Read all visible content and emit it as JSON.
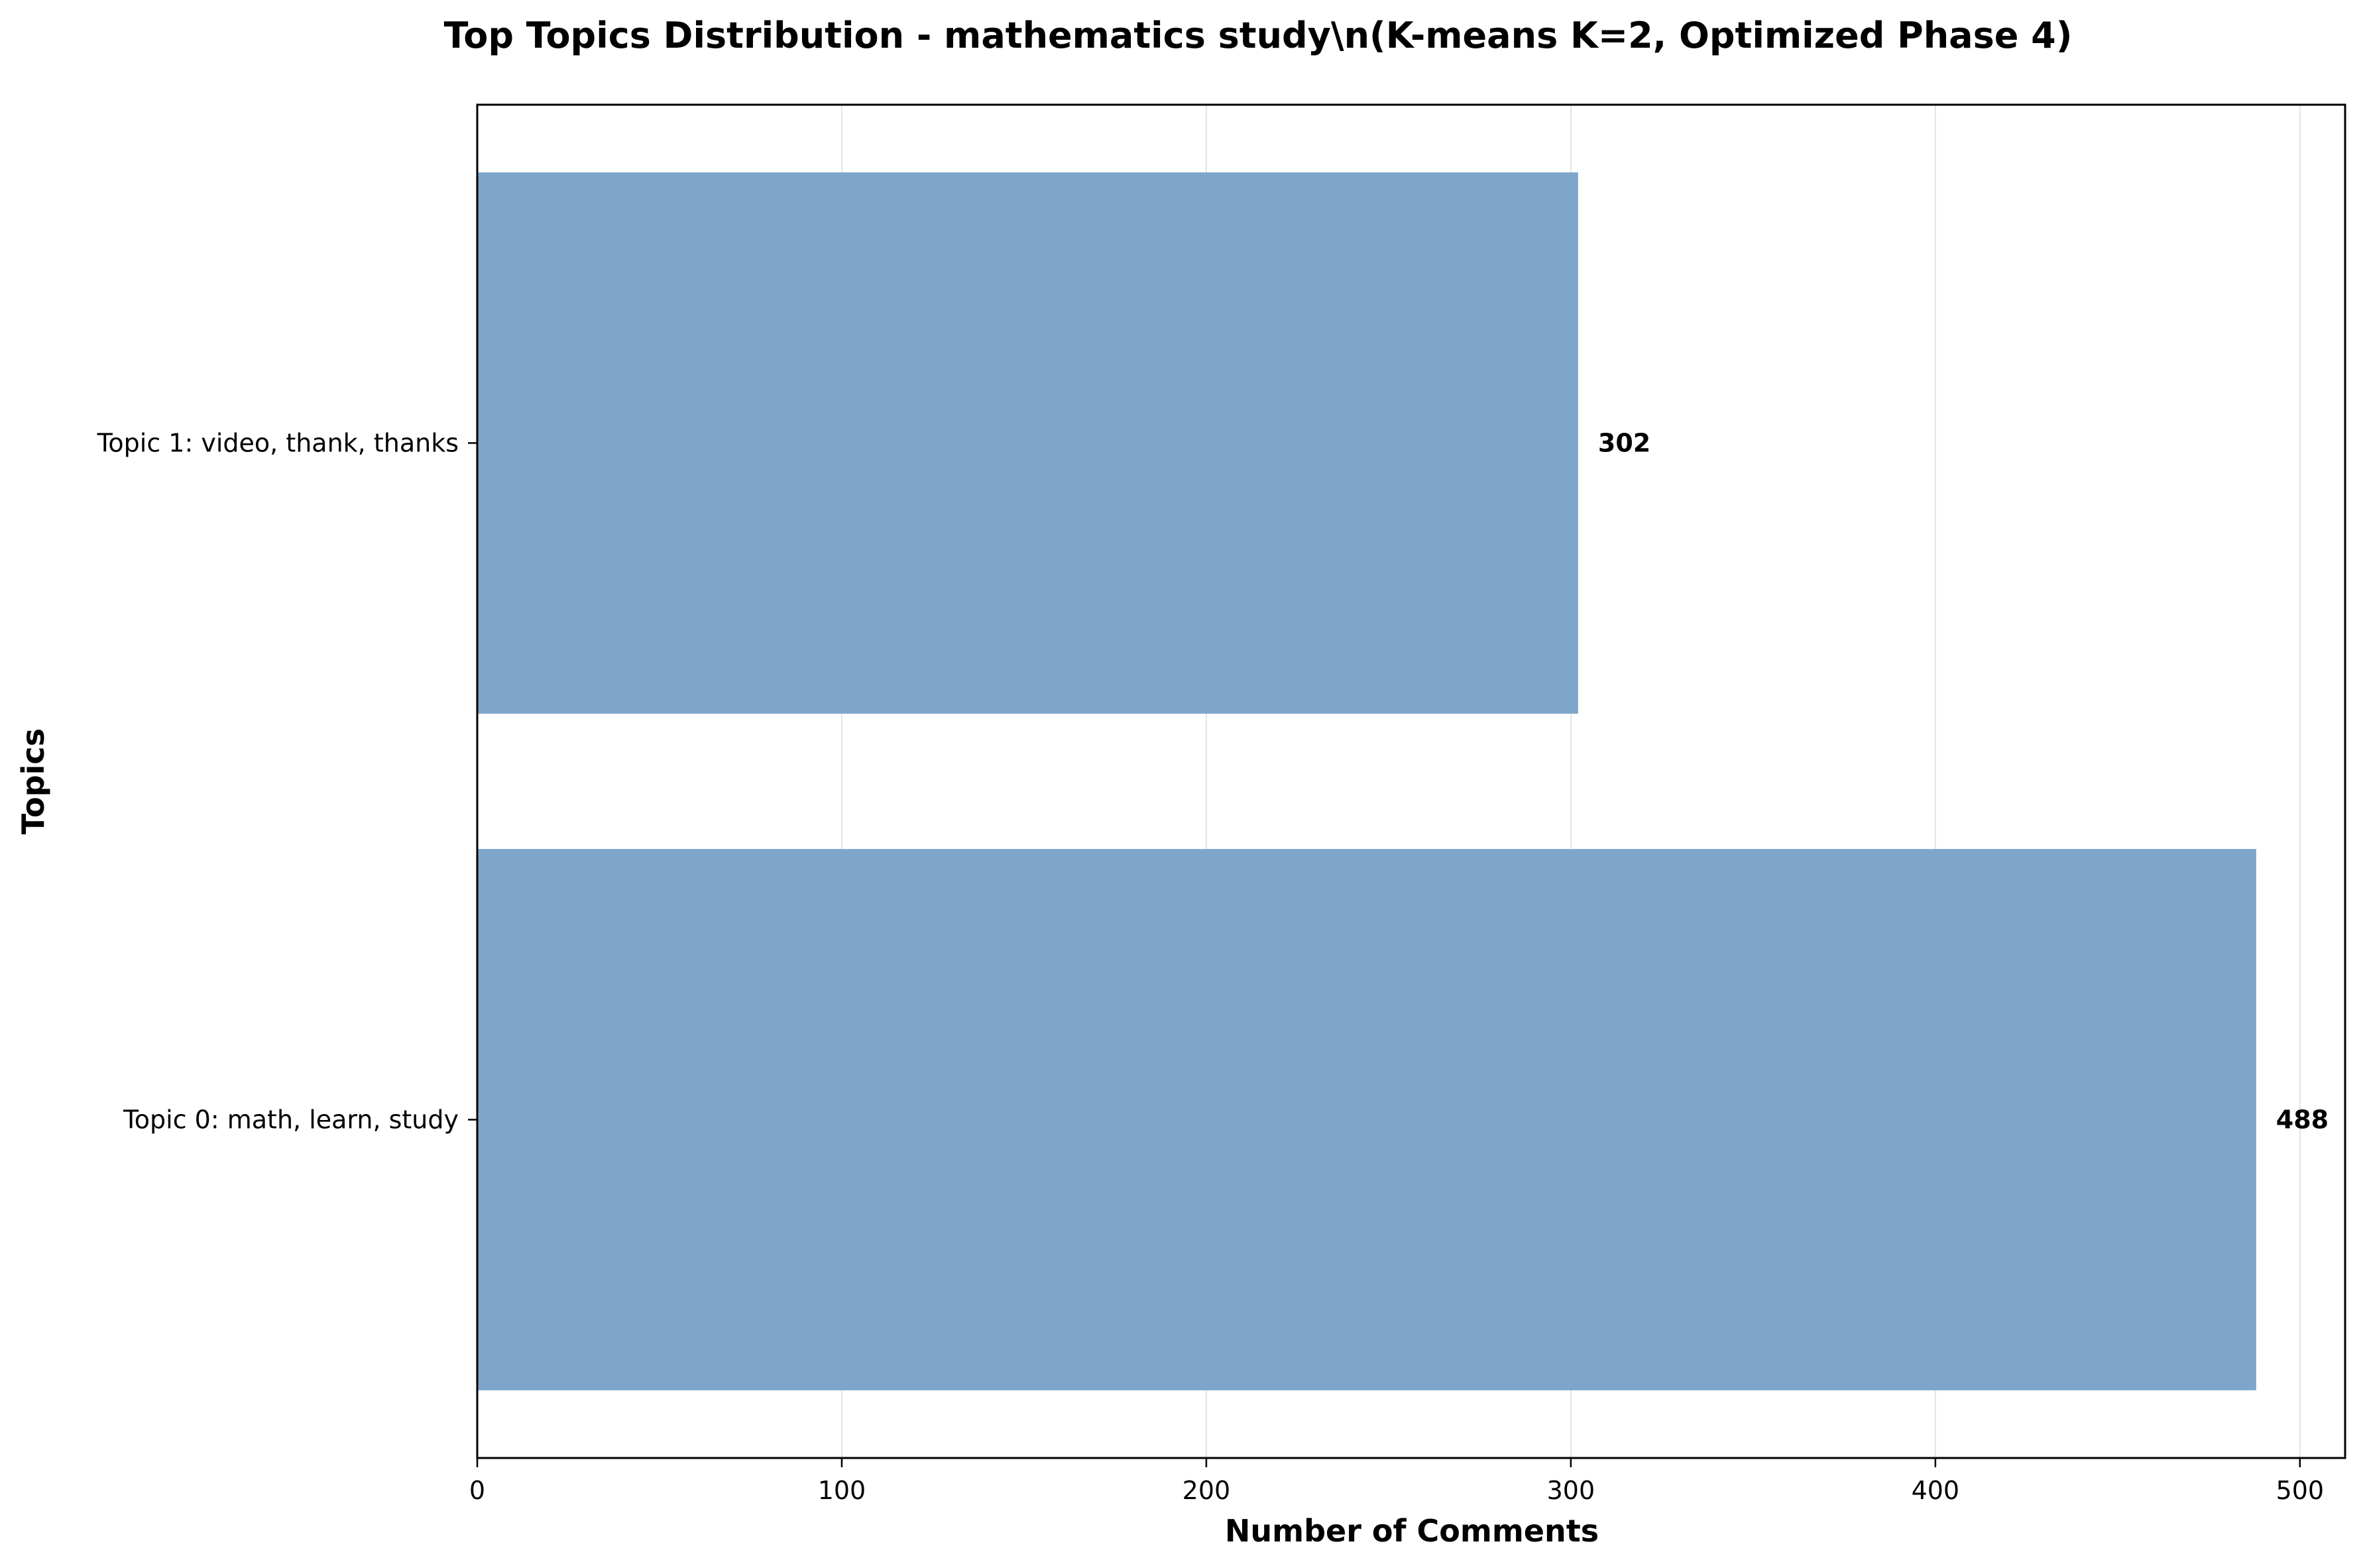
{
  "chart_data": {
    "type": "bar",
    "orientation": "horizontal",
    "title": "Top Topics Distribution - mathematics study\\n(K-means K=2, Optimized Phase 4)",
    "xlabel": "Number of Comments",
    "ylabel": "Topics",
    "categories": [
      "Topic 0: math, learn, study",
      "Topic 1: video, thank, thanks"
    ],
    "values": [
      488,
      302
    ],
    "data_labels": [
      "488",
      "302"
    ],
    "x_ticks": [
      0,
      100,
      200,
      300,
      400,
      500
    ],
    "x_tick_labels": [
      "0",
      "100",
      "200",
      "300",
      "400",
      "500"
    ],
    "xlim": [
      0,
      512.4
    ],
    "grid": "vertical",
    "bar_color": "#7ea6ca",
    "grid_color": "#e3e3e3"
  }
}
